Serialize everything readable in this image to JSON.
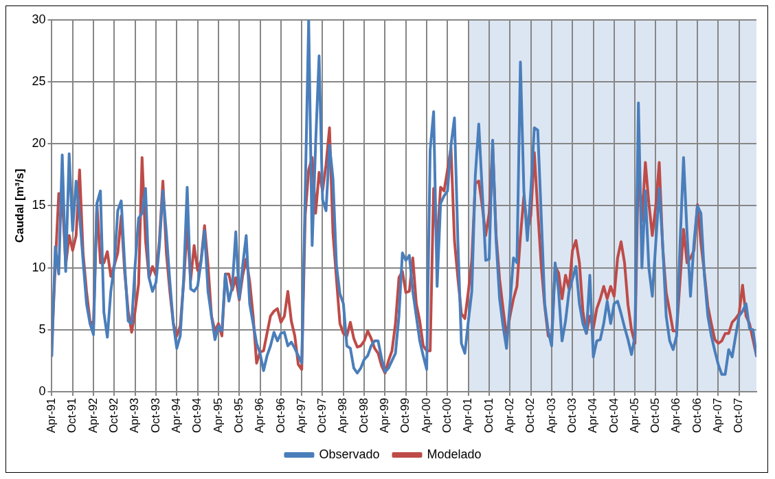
{
  "chart_data": {
    "type": "line",
    "ylabel": "Caudal [m³/s]",
    "x": [
      "1991-04",
      "1991-05",
      "1991-06",
      "1991-07",
      "1991-08",
      "1991-09",
      "1991-10",
      "1991-11",
      "1991-12",
      "1992-01",
      "1992-02",
      "1992-03",
      "1992-04",
      "1992-05",
      "1992-06",
      "1992-07",
      "1992-08",
      "1992-09",
      "1992-10",
      "1992-11",
      "1992-12",
      "1993-01",
      "1993-02",
      "1993-03",
      "1993-04",
      "1993-05",
      "1993-06",
      "1993-07",
      "1993-08",
      "1993-09",
      "1993-10",
      "1993-11",
      "1993-12",
      "1994-01",
      "1994-02",
      "1994-03",
      "1994-04",
      "1994-05",
      "1994-06",
      "1994-07",
      "1994-08",
      "1994-09",
      "1994-10",
      "1994-11",
      "1994-12",
      "1995-01",
      "1995-02",
      "1995-03",
      "1995-04",
      "1995-05",
      "1995-06",
      "1995-07",
      "1995-08",
      "1995-09",
      "1995-10",
      "1995-11",
      "1995-12",
      "1996-01",
      "1996-02",
      "1996-03",
      "1996-04",
      "1996-05",
      "1996-06",
      "1996-07",
      "1996-08",
      "1996-09",
      "1996-10",
      "1996-11",
      "1996-12",
      "1997-01",
      "1997-02",
      "1997-03",
      "1997-04",
      "1997-05",
      "1997-06",
      "1997-07",
      "1997-08",
      "1997-09",
      "1997-10",
      "1997-11",
      "1997-12",
      "1998-01",
      "1998-02",
      "1998-03",
      "1998-04",
      "1998-05",
      "1998-06",
      "1998-07",
      "1998-08",
      "1998-09",
      "1998-10",
      "1998-11",
      "1998-12",
      "1999-01",
      "1999-02",
      "1999-03",
      "1999-04",
      "1999-05",
      "1999-06",
      "1999-07",
      "1999-08",
      "1999-09",
      "1999-10",
      "1999-11",
      "1999-12",
      "2000-01",
      "2000-02",
      "2000-03",
      "2000-04",
      "2000-05",
      "2000-06",
      "2000-07",
      "2000-08",
      "2000-09",
      "2000-10",
      "2000-11",
      "2000-12",
      "2001-01",
      "2001-02",
      "2001-03",
      "2001-04",
      "2001-05",
      "2001-06",
      "2001-07",
      "2001-08",
      "2001-09",
      "2001-10",
      "2001-11",
      "2001-12",
      "2002-01",
      "2002-02",
      "2002-03",
      "2002-04",
      "2002-05",
      "2002-06",
      "2002-07",
      "2002-08",
      "2002-09",
      "2002-10",
      "2002-11",
      "2002-12",
      "2003-01",
      "2003-02",
      "2003-03",
      "2003-04",
      "2003-05",
      "2003-06",
      "2003-07",
      "2003-08",
      "2003-09",
      "2003-10",
      "2003-11",
      "2003-12",
      "2004-01",
      "2004-02",
      "2004-03",
      "2004-04",
      "2004-05",
      "2004-06",
      "2004-07",
      "2004-08",
      "2004-09",
      "2004-10",
      "2004-11",
      "2004-12",
      "2005-01",
      "2005-02",
      "2005-03",
      "2005-04",
      "2005-05",
      "2005-06",
      "2005-07",
      "2005-08",
      "2005-09",
      "2005-10",
      "2005-11",
      "2005-12",
      "2006-01",
      "2006-02",
      "2006-03",
      "2006-04",
      "2006-05",
      "2006-06",
      "2006-07",
      "2006-08",
      "2006-09",
      "2006-10",
      "2006-11",
      "2006-12",
      "2007-01",
      "2007-02",
      "2007-03",
      "2007-04",
      "2007-05",
      "2007-06",
      "2007-07",
      "2007-08",
      "2007-09",
      "2007-10",
      "2007-11",
      "2007-12",
      "2008-01",
      "2008-02",
      "2008-03"
    ],
    "series": [
      {
        "name": "Observado",
        "color": "#4a7ebb",
        "values": [
          2.9,
          11.7,
          9.5,
          19.1,
          9.7,
          19.2,
          13,
          17,
          14.2,
          10.6,
          7.1,
          5.5,
          4.6,
          15.2,
          16.2,
          6.4,
          4.4,
          8.1,
          10.2,
          14.6,
          15.4,
          10.2,
          5.7,
          5.5,
          10.2,
          14,
          14.4,
          16.4,
          9.2,
          8.1,
          8.8,
          11.8,
          16.2,
          12.8,
          8.9,
          5.5,
          3.5,
          4.5,
          9.2,
          16.5,
          8.3,
          8.1,
          8.5,
          10.5,
          13,
          8.1,
          6.1,
          4.2,
          5.3,
          4.9,
          9.5,
          7.3,
          8.5,
          12.9,
          7.5,
          10.2,
          12.6,
          7.1,
          5.5,
          3.9,
          3.1,
          1.7,
          2.9,
          3.7,
          4.8,
          4.1,
          4.7,
          4.8,
          3.7,
          4.0,
          3.5,
          2.9,
          2.3,
          16,
          30,
          11.8,
          20,
          27.1,
          15.5,
          14.6,
          19.9,
          17.2,
          10.2,
          7.9,
          7.1,
          3.7,
          3.5,
          1.9,
          1.5,
          1.9,
          2.6,
          2.9,
          3.7,
          4.1,
          4.1,
          2.7,
          1.6,
          1.9,
          2.5,
          3.1,
          6.1,
          11.2,
          10.6,
          11,
          8.1,
          6.1,
          4.1,
          2.9,
          1.8,
          19.5,
          22.6,
          8.5,
          15.2,
          15.8,
          16.2,
          19.9,
          22.1,
          12,
          3.9,
          3.1,
          5.7,
          8.1,
          17.4,
          21.6,
          16.2,
          10.6,
          10.7,
          20.3,
          12.2,
          7.5,
          5.3,
          3.5,
          7.1,
          10.8,
          10.4,
          26.6,
          16.2,
          12.2,
          16.2,
          21.3,
          21.1,
          14.2,
          7.1,
          4.9,
          3.7,
          10.4,
          8.1,
          4.1,
          5.7,
          8.1,
          9.1,
          10.1,
          7.1,
          5.5,
          4.7,
          9.4,
          2.8,
          4.1,
          4.2,
          5.5,
          7.3,
          5.5,
          7.1,
          7.3,
          6.3,
          5.2,
          4.2,
          3.0,
          4.5,
          23.3,
          10,
          16.2,
          10,
          7.7,
          12,
          16.4,
          11.8,
          6.1,
          4.1,
          3.4,
          4.5,
          12,
          18.9,
          12.8,
          7.7,
          12,
          15,
          14.4,
          9.4,
          6.1,
          4.5,
          3.3,
          2.2,
          1.4,
          1.4,
          3.4,
          2.8,
          4.5,
          6.1,
          6.5,
          7.1,
          5.1,
          5.0,
          2.9
        ]
      },
      {
        "name": "Modelado",
        "color": "#be4b48",
        "values": [
          3.9,
          10.2,
          16,
          15.8,
          10.2,
          12.6,
          11.4,
          12.6,
          17.9,
          11.2,
          8.1,
          5.7,
          5.4,
          15.2,
          10.4,
          10.4,
          11.3,
          9.3,
          10.2,
          11.2,
          14.2,
          9.6,
          6.5,
          4.8,
          6.5,
          8.7,
          18.9,
          12.2,
          9.2,
          10.1,
          9.4,
          12.2,
          17,
          11.2,
          8.1,
          5.5,
          4.5,
          5.3,
          8.9,
          13.3,
          9,
          11.8,
          9.8,
          10.6,
          13.4,
          10.2,
          6.1,
          4.9,
          5.5,
          4.5,
          9.5,
          9.5,
          8.2,
          9.2,
          7.4,
          9.4,
          10.7,
          8.9,
          6.1,
          2.3,
          3.2,
          3.3,
          4.7,
          6.1,
          6.5,
          6.7,
          5.6,
          6.1,
          8.1,
          5.7,
          4.5,
          2.2,
          1.8,
          14.2,
          17.9,
          18.9,
          14.4,
          17.7,
          16.2,
          18.3,
          21.3,
          12.8,
          9.1,
          5.5,
          4.7,
          4.5,
          5.6,
          4.3,
          3.6,
          3.7,
          4.1,
          4.9,
          4.3,
          3.5,
          3.1,
          2.1,
          1.5,
          2.5,
          3.3,
          5.5,
          9.2,
          9.7,
          8,
          8.1,
          10.8,
          7.1,
          5.7,
          3.7,
          3.3,
          3.3,
          16.4,
          12,
          16.5,
          16.2,
          17.9,
          19.7,
          12.2,
          9.1,
          6.3,
          5.9,
          8.1,
          10.6,
          16.8,
          17,
          15,
          12.6,
          14.4,
          19.9,
          12.6,
          9.1,
          6.7,
          4.5,
          6.1,
          7.5,
          8.5,
          12.5,
          15.8,
          13,
          14.2,
          19.3,
          14.6,
          10.2,
          6.9,
          4.5,
          4.3,
          10.1,
          9.6,
          7.5,
          9.4,
          8.3,
          11.4,
          12.2,
          10.4,
          6.5,
          4.7,
          6.1,
          5.1,
          6.7,
          7.5,
          8.5,
          7.5,
          8.5,
          7.7,
          10.8,
          12.1,
          10.4,
          7,
          5,
          3.9,
          18.7,
          13.8,
          18.5,
          15.2,
          12.6,
          15,
          18.5,
          11.6,
          8,
          6.5,
          4.9,
          4.9,
          9,
          13.1,
          10.4,
          10.8,
          11.4,
          15.1,
          12,
          9.6,
          6.9,
          5.5,
          4.2,
          3.9,
          4.1,
          4.7,
          4.7,
          5.6,
          5.9,
          6.3,
          8.6,
          6.1,
          5.5,
          4.2,
          2.9
        ]
      }
    ],
    "xlim": [
      "1991-04",
      "2008-03"
    ],
    "xticks": [
      {
        "value": "1991-04",
        "label": "Apr-91"
      },
      {
        "value": "1991-10",
        "label": "Oct-91"
      },
      {
        "value": "1992-04",
        "label": "Apr-92"
      },
      {
        "value": "1992-10",
        "label": "Oct-92"
      },
      {
        "value": "1993-04",
        "label": "Apr-93"
      },
      {
        "value": "1993-10",
        "label": "Oct-93"
      },
      {
        "value": "1994-04",
        "label": "Apr-94"
      },
      {
        "value": "1994-10",
        "label": "Oct-94"
      },
      {
        "value": "1995-04",
        "label": "Apr-95"
      },
      {
        "value": "1995-10",
        "label": "Oct-95"
      },
      {
        "value": "1996-04",
        "label": "Apr-96"
      },
      {
        "value": "1996-10",
        "label": "Oct-96"
      },
      {
        "value": "1997-04",
        "label": "Apr-97"
      },
      {
        "value": "1997-10",
        "label": "Oct-97"
      },
      {
        "value": "1998-04",
        "label": "Apr-98"
      },
      {
        "value": "1998-10",
        "label": "Oct-98"
      },
      {
        "value": "1999-04",
        "label": "Apr-99"
      },
      {
        "value": "1999-10",
        "label": "Oct-99"
      },
      {
        "value": "2000-04",
        "label": "Apr-00"
      },
      {
        "value": "2000-10",
        "label": "Oct-00"
      },
      {
        "value": "2001-04",
        "label": "Apr-01"
      },
      {
        "value": "2001-10",
        "label": "Oct-01"
      },
      {
        "value": "2002-04",
        "label": "Apr-02"
      },
      {
        "value": "2002-10",
        "label": "Oct-02"
      },
      {
        "value": "2003-04",
        "label": "Apr-03"
      },
      {
        "value": "2003-10",
        "label": "Oct-03"
      },
      {
        "value": "2004-04",
        "label": "Apr-04"
      },
      {
        "value": "2004-10",
        "label": "Oct-04"
      },
      {
        "value": "2005-04",
        "label": "Apr-05"
      },
      {
        "value": "2005-10",
        "label": "Oct-05"
      },
      {
        "value": "2006-04",
        "label": "Apr-06"
      },
      {
        "value": "2006-10",
        "label": "Oct-06"
      },
      {
        "value": "2007-04",
        "label": "Apr-07"
      },
      {
        "value": "2007-10",
        "label": "Oct-07"
      }
    ],
    "ylim": [
      0,
      30
    ],
    "yticks": [
      0,
      5,
      10,
      15,
      20,
      25,
      30
    ],
    "bands": [
      {
        "axis": "x",
        "from": "2001-04",
        "to": "2008-03",
        "color": "#dce6f2"
      }
    ],
    "grid": true,
    "legend": "bottom",
    "marker": "none",
    "line_style": "solid"
  }
}
